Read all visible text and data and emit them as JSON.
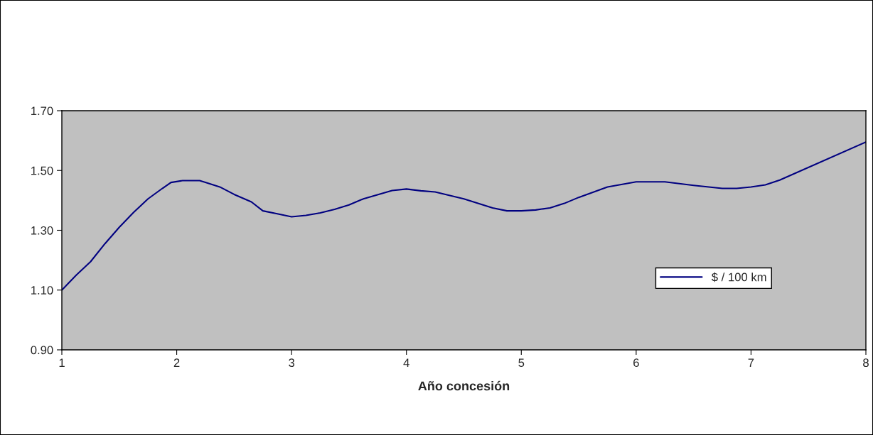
{
  "chart_data": {
    "type": "line",
    "xlabel": "Año concesión",
    "x": [
      1,
      1.125,
      1.25,
      1.375,
      1.5,
      1.625,
      1.75,
      1.875,
      1.95,
      2.05,
      2.2,
      2.25,
      2.375,
      2.5,
      2.65,
      2.75,
      2.875,
      3,
      3.125,
      3.25,
      3.375,
      3.5,
      3.625,
      3.875,
      4,
      4.125,
      4.25,
      4.5,
      4.75,
      4.875,
      5,
      5.125,
      5.25,
      5.375,
      5.5,
      5.75,
      6,
      6.25,
      6.5,
      6.75,
      6.875,
      7,
      7.125,
      7.25,
      8
    ],
    "series": [
      {
        "name": "$ / 100 km",
        "color": "#000080",
        "values": [
          1.1,
          1.15,
          1.195,
          1.255,
          1.31,
          1.36,
          1.405,
          1.44,
          1.46,
          1.466,
          1.466,
          1.46,
          1.445,
          1.42,
          1.395,
          1.365,
          1.355,
          1.345,
          1.35,
          1.358,
          1.37,
          1.385,
          1.405,
          1.433,
          1.438,
          1.432,
          1.428,
          1.405,
          1.375,
          1.365,
          1.365,
          1.368,
          1.375,
          1.39,
          1.41,
          1.445,
          1.462,
          1.462,
          1.45,
          1.44,
          1.44,
          1.445,
          1.452,
          1.468,
          1.595
        ]
      }
    ],
    "xlim": [
      1,
      8
    ],
    "xticks": [
      1,
      2,
      3,
      4,
      5,
      6,
      7,
      8
    ],
    "ylim": [
      0.9,
      1.7
    ],
    "yticks": [
      {
        "value": 0.9,
        "label": "0.90"
      },
      {
        "value": 1.1,
        "label": "1.10"
      },
      {
        "value": 1.3,
        "label": "1.30"
      },
      {
        "value": 1.5,
        "label": "1.50"
      },
      {
        "value": 1.7,
        "label": "1.70"
      }
    ],
    "grid": false,
    "legend": "right",
    "marker": "none",
    "line_style": "solid"
  }
}
